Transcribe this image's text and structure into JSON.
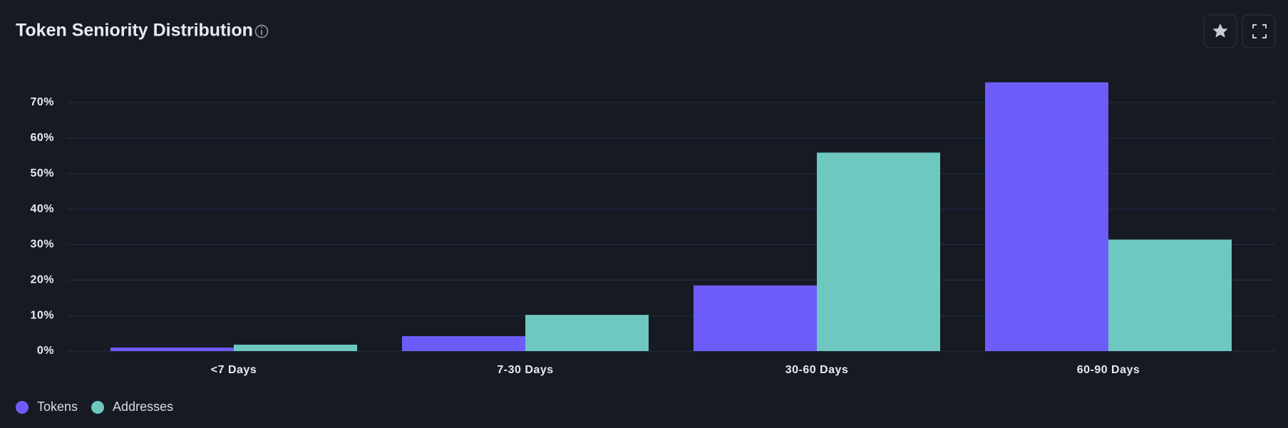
{
  "chart_data": {
    "type": "grouped_bar",
    "title": "Token Seniority Distribution",
    "categories": [
      "<7 Days",
      "7-30 Days",
      "30-60 Days",
      "60-90 Days"
    ],
    "series": [
      {
        "name": "Tokens",
        "color": "#6e5cfa",
        "values": [
          1,
          4.2,
          18.5,
          75.7
        ]
      },
      {
        "name": "Addresses",
        "color": "#6ec8c0",
        "values": [
          1.8,
          10.2,
          55.9,
          31.4
        ]
      }
    ],
    "ylim": [
      0,
      80
    ],
    "yticks": [
      {
        "value": 0,
        "label": "0%"
      },
      {
        "value": 10,
        "label": "10%"
      },
      {
        "value": 20,
        "label": "20%"
      },
      {
        "value": 30,
        "label": "30%"
      },
      {
        "value": 40,
        "label": "40%"
      },
      {
        "value": 50,
        "label": "50%"
      },
      {
        "value": 60,
        "label": "60%"
      },
      {
        "value": 70,
        "label": "70%"
      }
    ],
    "grid": true
  }
}
